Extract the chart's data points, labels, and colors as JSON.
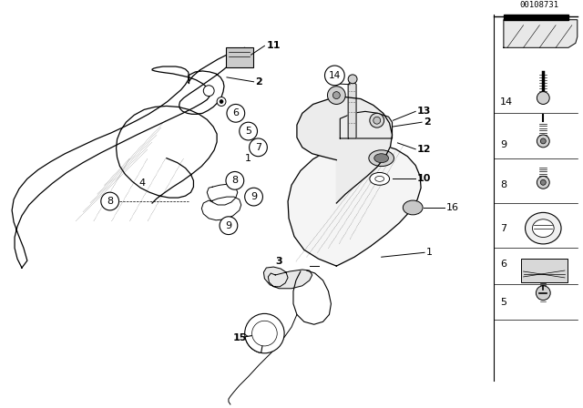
{
  "bg_color": "#ffffff",
  "part_number": "00108731",
  "fig_w": 6.4,
  "fig_h": 4.48,
  "dpi": 100
}
